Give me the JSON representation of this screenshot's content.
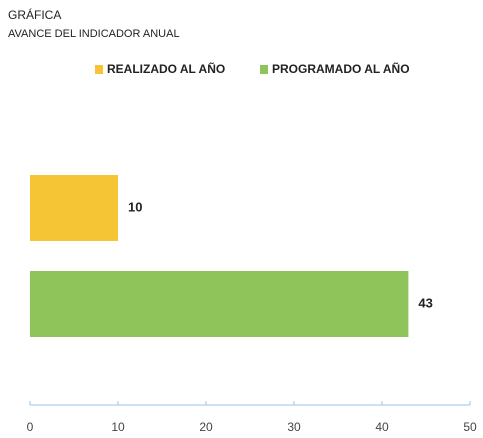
{
  "chart_data": {
    "type": "bar",
    "orientation": "horizontal",
    "title": "GRÁFICA",
    "subtitle": "AVANCE DEL INDICADOR ANUAL",
    "categories": [
      null
    ],
    "series": [
      {
        "name": "REALIZADO AL AÑO",
        "color": "#f5c535",
        "values": [
          10
        ]
      },
      {
        "name": "PROGRAMADO AL AÑO",
        "color": "#8fc45a",
        "values": [
          43
        ]
      }
    ],
    "xlim": [
      0,
      50
    ],
    "xticks": [
      0,
      10,
      20,
      30,
      40,
      50
    ],
    "legend": "top"
  }
}
